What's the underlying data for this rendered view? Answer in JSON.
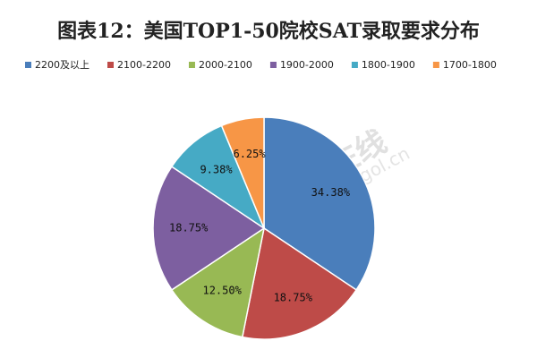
{
  "chart_data": {
    "type": "pie",
    "title": "图表12：美国TOP1-50院校SAT录取要求分布",
    "categories": [
      "2200及以上",
      "2100-2200",
      "2000-2100",
      "1900-2000",
      "1800-1900",
      "1700-1800"
    ],
    "values": [
      34.38,
      18.75,
      12.5,
      18.75,
      9.38,
      6.25
    ],
    "value_labels": [
      "34.38%",
      "18.75%",
      "12.50%",
      "18.75%",
      "9.38%",
      "6.25%"
    ],
    "colors": [
      "#4a7ebb",
      "#be4b48",
      "#98b954",
      "#7d5fa0",
      "#46aac5",
      "#f79646"
    ],
    "legend": "top",
    "watermark": [
      "中国教育在线",
      "gol.cn"
    ]
  }
}
